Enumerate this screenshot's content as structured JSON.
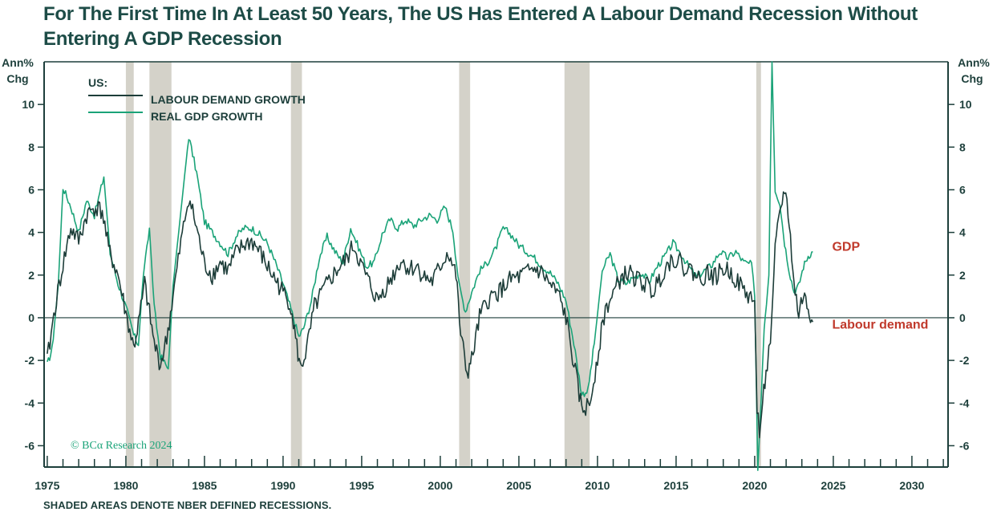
{
  "chart_data": {
    "type": "line",
    "title": "For The First Time In At Least 50 Years, The US Has Entered A Labour Demand Recession Without Entering A GDP Recession",
    "ylabel_left": "Ann%\nChg",
    "ylabel_right": "Ann%\nChg",
    "ylim": [
      -7,
      12
    ],
    "xlim": [
      1974.8,
      2032.3
    ],
    "yticks": [
      -6,
      -4,
      -2,
      0,
      2,
      4,
      6,
      8,
      10
    ],
    "xticks": [
      1975,
      1980,
      1985,
      1990,
      1995,
      2000,
      2005,
      2010,
      2015,
      2020,
      2025,
      2030
    ],
    "legend_title": "US:",
    "legend_position": "top-left",
    "grid": false,
    "colors": {
      "labour": "#1d3d39",
      "gdp": "#1aa378",
      "recession": "#d4d2c9",
      "annotation": "#c0392b",
      "axis": "#1d3f3b"
    },
    "recessions": [
      [
        1980.0,
        1980.5
      ],
      [
        1981.5,
        1982.9
      ],
      [
        1990.5,
        1991.2
      ],
      [
        2001.2,
        2001.9
      ],
      [
        2007.9,
        2009.5
      ],
      [
        2020.1,
        2020.4
      ]
    ],
    "series": [
      {
        "name": "LABOUR DEMAND GROWTH",
        "x": [
          1975.0,
          1975.5,
          1976.0,
          1976.5,
          1977.0,
          1977.5,
          1978.0,
          1978.5,
          1978.9,
          1979.5,
          1980.0,
          1980.5,
          1980.8,
          1981.2,
          1981.5,
          1981.8,
          1982.2,
          1982.6,
          1983.0,
          1983.5,
          1984.0,
          1984.5,
          1985.0,
          1985.5,
          1986.0,
          1986.5,
          1987.0,
          1987.5,
          1988.0,
          1988.5,
          1989.0,
          1989.5,
          1990.0,
          1990.5,
          1990.8,
          1991.1,
          1991.5,
          1992.0,
          1992.5,
          1993.0,
          1993.5,
          1994.0,
          1994.5,
          1995.0,
          1995.5,
          1996.0,
          1996.5,
          1997.0,
          1997.5,
          1998.0,
          1998.5,
          1999.0,
          1999.5,
          2000.0,
          2000.5,
          2001.0,
          2001.3,
          2001.7,
          2002.0,
          2002.5,
          2003.0,
          2003.5,
          2004.0,
          2004.5,
          2005.0,
          2005.5,
          2006.0,
          2006.5,
          2007.0,
          2007.5,
          2008.0,
          2008.5,
          2009.0,
          2009.5,
          2010.0,
          2010.5,
          2011.0,
          2011.5,
          2012.0,
          2012.5,
          2013.0,
          2013.5,
          2014.0,
          2014.5,
          2015.0,
          2015.5,
          2016.0,
          2016.5,
          2017.0,
          2017.5,
          2018.0,
          2018.5,
          2019.0,
          2019.5,
          2020.0,
          2020.15,
          2020.3,
          2020.5,
          2020.8,
          2021.0,
          2021.3,
          2021.6,
          2021.9,
          2022.2,
          2022.5,
          2022.8,
          2023.1,
          2023.4,
          2023.7
        ],
        "values": [
          -2.0,
          0.5,
          2.5,
          4.2,
          3.6,
          4.8,
          5.2,
          5.0,
          3.2,
          2.0,
          0.2,
          -1.4,
          -0.3,
          1.6,
          0.2,
          -1.2,
          -2.2,
          -1.0,
          1.0,
          3.5,
          5.7,
          4.2,
          2.5,
          2.0,
          2.6,
          2.2,
          3.0,
          3.4,
          3.6,
          3.1,
          2.4,
          1.8,
          1.2,
          0.6,
          -1.0,
          -2.4,
          -1.5,
          0.5,
          1.2,
          1.8,
          2.3,
          2.7,
          3.4,
          2.4,
          1.6,
          0.8,
          1.4,
          2.0,
          2.7,
          2.3,
          2.4,
          1.9,
          1.7,
          2.4,
          3.1,
          2.0,
          -0.8,
          -2.6,
          -2.0,
          0.0,
          0.8,
          1.1,
          1.4,
          1.8,
          1.9,
          2.1,
          2.3,
          2.1,
          1.5,
          1.1,
          0.0,
          -2.2,
          -4.3,
          -4.1,
          -1.8,
          0.4,
          1.1,
          1.9,
          2.1,
          1.8,
          1.6,
          1.2,
          1.9,
          2.6,
          2.8,
          2.4,
          2.2,
          1.8,
          2.1,
          1.9,
          2.3,
          2.1,
          1.6,
          1.1,
          0.8,
          -4.5,
          -5.2,
          -3.8,
          -2.3,
          -1.2,
          3.2,
          4.8,
          6.1,
          4.5,
          1.5,
          0.2,
          1.1,
          0.4,
          -0.2
        ]
      },
      {
        "name": "REAL GDP GROWTH",
        "x": [
          1975.0,
          1975.3,
          1975.7,
          1976.0,
          1976.5,
          1977.0,
          1977.5,
          1978.0,
          1978.6,
          1979.0,
          1979.5,
          1980.0,
          1980.5,
          1980.8,
          1981.1,
          1981.5,
          1981.8,
          1982.2,
          1982.7,
          1983.0,
          1983.5,
          1984.0,
          1984.5,
          1985.0,
          1985.5,
          1986.0,
          1986.5,
          1987.0,
          1987.5,
          1988.0,
          1988.5,
          1989.0,
          1989.5,
          1990.0,
          1990.5,
          1991.0,
          1991.3,
          1991.8,
          1992.3,
          1992.8,
          1993.3,
          1993.8,
          1994.3,
          1994.8,
          1995.3,
          1995.8,
          1996.3,
          1996.8,
          1997.3,
          1997.8,
          1998.3,
          1998.8,
          1999.3,
          1999.8,
          2000.3,
          2000.8,
          2001.2,
          2001.6,
          2002.0,
          2002.5,
          2003.0,
          2003.5,
          2004.0,
          2004.5,
          2005.0,
          2005.5,
          2006.0,
          2006.5,
          2007.0,
          2007.5,
          2008.0,
          2008.5,
          2009.0,
          2009.4,
          2009.8,
          2010.3,
          2010.8,
          2011.3,
          2011.8,
          2012.3,
          2012.8,
          2013.3,
          2013.8,
          2014.3,
          2014.8,
          2015.3,
          2015.8,
          2016.3,
          2016.8,
          2017.3,
          2017.8,
          2018.3,
          2018.8,
          2019.3,
          2019.8,
          2020.0,
          2020.2,
          2020.4,
          2020.6,
          2020.9,
          2021.1,
          2021.3,
          2021.6,
          2021.9,
          2022.2,
          2022.5,
          2022.8,
          2023.1,
          2023.4,
          2023.7
        ],
        "values": [
          -2.2,
          -1.5,
          1.5,
          6.1,
          5.2,
          4.0,
          5.5,
          4.8,
          6.6,
          3.0,
          1.6,
          0.5,
          -0.8,
          -1.3,
          2.0,
          4.2,
          0.5,
          -1.8,
          -2.4,
          1.5,
          5.0,
          8.5,
          6.8,
          4.5,
          4.0,
          3.5,
          3.0,
          3.8,
          4.2,
          4.2,
          3.9,
          3.5,
          2.6,
          1.6,
          0.4,
          -0.9,
          -0.5,
          0.8,
          2.8,
          3.8,
          3.1,
          2.6,
          4.2,
          3.3,
          2.4,
          2.6,
          3.9,
          4.6,
          4.2,
          4.6,
          4.3,
          4.6,
          4.8,
          4.6,
          5.2,
          4.1,
          1.5,
          0.3,
          1.2,
          2.2,
          2.6,
          3.2,
          4.2,
          3.9,
          3.4,
          3.1,
          2.8,
          2.4,
          2.1,
          1.6,
          0.8,
          -1.2,
          -3.6,
          -3.4,
          -1.2,
          2.2,
          3.0,
          1.8,
          1.6,
          1.9,
          2.1,
          1.7,
          2.4,
          2.9,
          3.5,
          3.0,
          2.4,
          1.9,
          2.2,
          2.5,
          3.1,
          2.8,
          3.1,
          2.6,
          2.5,
          1.0,
          -7.0,
          -4.0,
          -0.5,
          2.0,
          12.0,
          6.0,
          5.4,
          3.5,
          2.2,
          1.2,
          1.5,
          2.4,
          2.9,
          3.1
        ]
      }
    ],
    "annotations": [
      {
        "label": "GDP",
        "x": 2023.7,
        "y": 3.1
      },
      {
        "label": "Labour demand",
        "x": 2023.7,
        "y": -0.2
      }
    ],
    "source_label": "© BCα Research 2024"
  },
  "footnote": "SHADED AREAS DENOTE NBER DEFINED RECESSIONS."
}
